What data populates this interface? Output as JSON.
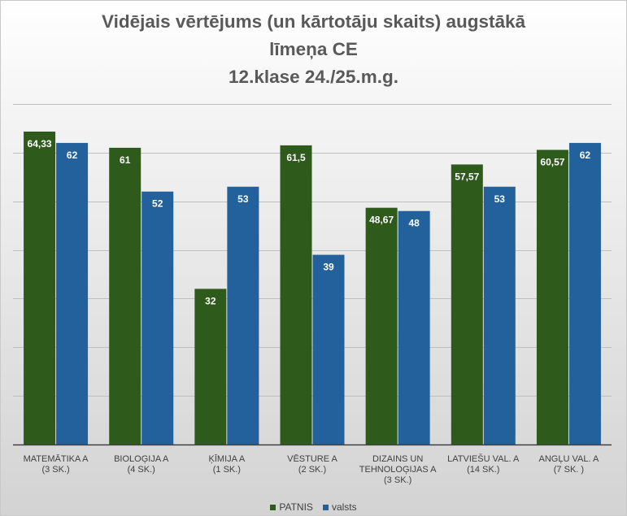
{
  "chart_data": {
    "type": "bar",
    "title_lines": [
      "Vidējais vērtējums (un kārtotāju skaits) augstākā",
      "līmeņa CE",
      "12.klase 24./25.m.g."
    ],
    "categories": [
      [
        "MATEMĀTIKA A",
        "(3 SK.)"
      ],
      [
        "BIOLOĢIJA A",
        "(4 SK.)"
      ],
      [
        "ĶĪMIJA A",
        "(1 SK.)"
      ],
      [
        "VĒSTURE A",
        "(2 SK.)"
      ],
      [
        "DIZAINS UN",
        "TEHNOLOĢIJAS A",
        "(3 SK.)"
      ],
      [
        "LATVIEŠU VAL. A",
        "(14 SK.)"
      ],
      [
        "ANGĻU VAL. A",
        "(7 SK. )"
      ]
    ],
    "series": [
      {
        "name": "PATNIS",
        "color": "#2e5a1c",
        "values": [
          64.33,
          61,
          32,
          61.5,
          48.67,
          57.57,
          60.57
        ],
        "labels": [
          "64,33",
          "61",
          "32",
          "61,5",
          "48,67",
          "57,57",
          "60,57"
        ]
      },
      {
        "name": "valsts",
        "color": "#23619c",
        "values": [
          62,
          52,
          53,
          39,
          48,
          53,
          62
        ],
        "labels": [
          "62",
          "52",
          "53",
          "39",
          "48",
          "53",
          "62"
        ]
      }
    ],
    "ylim": [
      0,
      70
    ],
    "grid": true,
    "xlabel": "",
    "ylabel": "",
    "legend_position": "bottom"
  }
}
